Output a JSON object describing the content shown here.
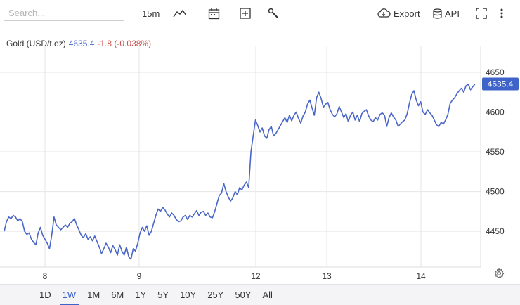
{
  "toolbar": {
    "search_placeholder": "Search...",
    "interval": "15m",
    "export_label": "Export",
    "api_label": "API",
    "icons": [
      "line-chart-icon",
      "calendar-icon",
      "plus-square-icon",
      "wrench-icon",
      "cloud-download-icon",
      "database-icon",
      "fullscreen-icon",
      "more-vertical-icon"
    ]
  },
  "header": {
    "symbol": "Gold (USD/t.oz)",
    "price": "4635.4",
    "change": "-1.8 (-0.038%)"
  },
  "colors": {
    "line": "#4a66c8",
    "price_label_bg": "#3e63c9",
    "change_negative": "#c9504a",
    "grid": "#e6e6e6",
    "active_range": "#3e63c9"
  },
  "chart_data": {
    "type": "line",
    "title": "Gold (USD/t.oz)",
    "xlabel": "",
    "ylabel": "",
    "x_ticks": [
      "8",
      "9",
      "12",
      "13",
      "14"
    ],
    "y_ticks": [
      4450,
      4500,
      4550,
      4600,
      4650
    ],
    "ylim": [
      4405,
      4665
    ],
    "last_value": 4635.4,
    "last_value_label": "4635.4",
    "grid": true,
    "legend": "none",
    "series": [
      {
        "values": [
          4450,
          4462,
          4468,
          4466,
          4470,
          4468,
          4463,
          4466,
          4462,
          4450,
          4446,
          4448,
          4440,
          4436,
          4433,
          4448,
          4455,
          4445,
          4440,
          4435,
          4428,
          4445,
          4468,
          4458,
          4455,
          4452,
          4455,
          4458,
          4455,
          4460,
          4462,
          4466,
          4458,
          4452,
          4445,
          4442,
          4447,
          4440,
          4443,
          4438,
          4444,
          4437,
          4430,
          4422,
          4428,
          4435,
          4430,
          4423,
          4432,
          4427,
          4420,
          4433,
          4425,
          4420,
          4430,
          4418,
          4415,
          4428,
          4425,
          4435,
          4448,
          4455,
          4450,
          4457,
          4445,
          4450,
          4460,
          4470,
          4478,
          4475,
          4480,
          4477,
          4472,
          4468,
          4473,
          4470,
          4465,
          4462,
          4463,
          4468,
          4470,
          4465,
          4470,
          4468,
          4472,
          4476,
          4470,
          4474,
          4475,
          4470,
          4473,
          4468,
          4467,
          4475,
          4485,
          4495,
          4498,
          4510,
          4500,
          4493,
          4488,
          4492,
          4500,
          4496,
          4505,
          4502,
          4508,
          4512,
          4505,
          4550,
          4570,
          4590,
          4583,
          4575,
          4580,
          4570,
          4567,
          4578,
          4582,
          4570,
          4573,
          4578,
          4583,
          4588,
          4593,
          4587,
          4596,
          4589,
          4596,
          4600,
          4592,
          4586,
          4595,
          4600,
          4610,
          4615,
          4605,
          4596,
          4618,
          4625,
          4617,
          4606,
          4610,
          4612,
          4603,
          4597,
          4594,
          4598,
          4607,
          4600,
          4593,
          4598,
          4588,
          4596,
          4600,
          4590,
          4596,
          4588,
          4598,
          4601,
          4603,
          4595,
          4590,
          4588,
          4593,
          4590,
          4597,
          4599,
          4596,
          4582,
          4593,
          4599,
          4594,
          4590,
          4582,
          4585,
          4588,
          4590,
          4598,
          4611,
          4622,
          4627,
          4615,
          4608,
          4613,
          4600,
          4597,
          4603,
          4599,
          4596,
          4590,
          4584,
          4582,
          4587,
          4585,
          4590,
          4597,
          4611,
          4615,
          4618,
          4623,
          4627,
          4630,
          4625,
          4633,
          4635,
          4628,
          4632,
          4635.4
        ]
      }
    ]
  },
  "ranges": {
    "items": [
      "1D",
      "1W",
      "1M",
      "6M",
      "1Y",
      "5Y",
      "10Y",
      "25Y",
      "50Y",
      "All"
    ],
    "active": "1W"
  }
}
